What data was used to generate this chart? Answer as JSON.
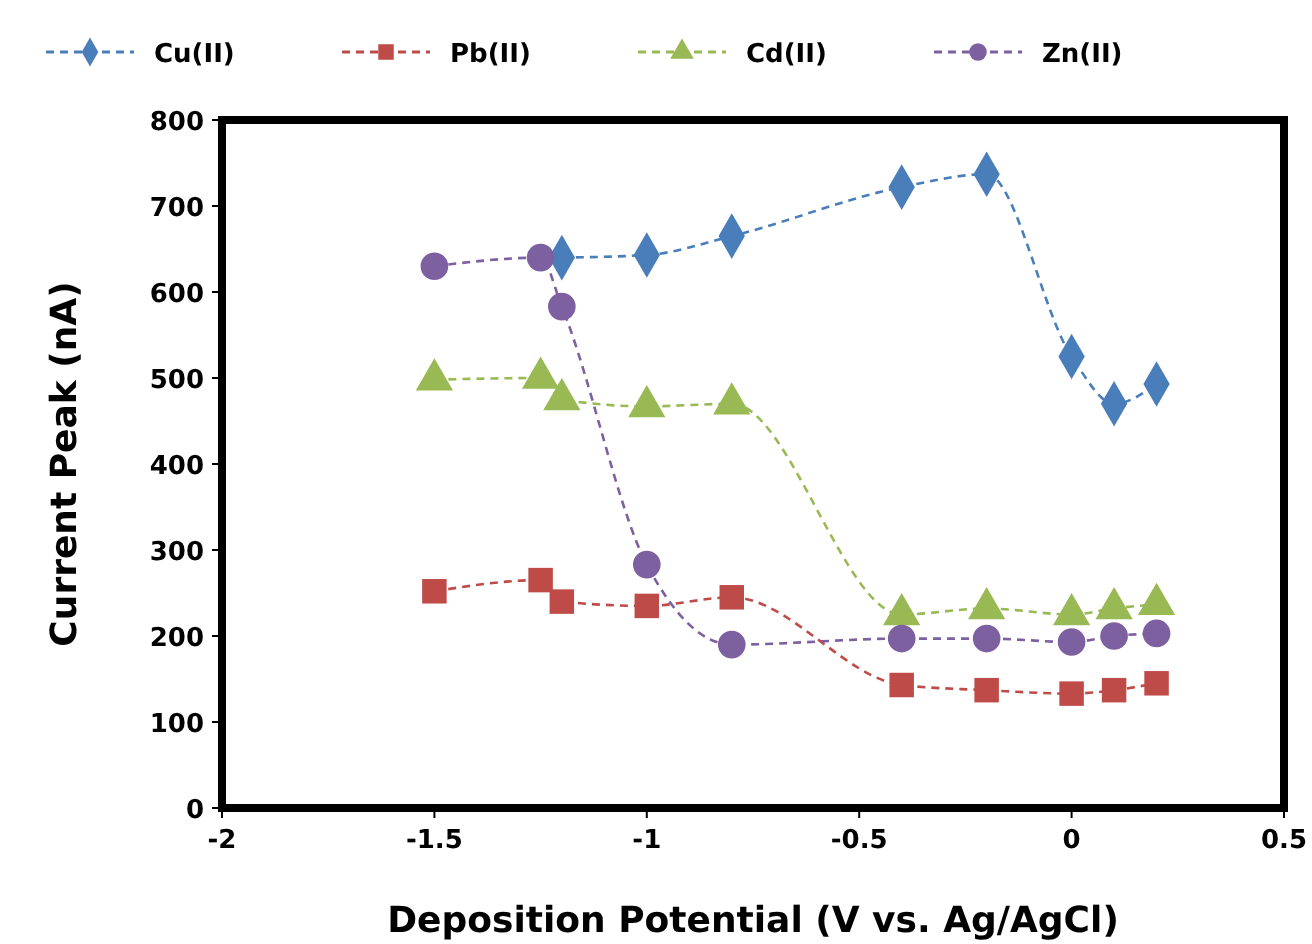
{
  "chart_data": {
    "type": "line",
    "xlabel": "Deposition Potential (V vs. Ag/AgCl)",
    "ylabel": "Current  Peak (nA)",
    "xlim": [
      -2,
      0.5
    ],
    "xticks": [
      -2,
      -1.5,
      -1,
      -0.5,
      0,
      0.5
    ],
    "ylim": [
      0,
      800
    ],
    "yticks": [
      0,
      100,
      200,
      300,
      400,
      500,
      600,
      700,
      800
    ],
    "legend": "top",
    "line_style": "dashed",
    "grid": false,
    "series": [
      {
        "name": "Cu(II)",
        "color": "#4a7ebb",
        "marker": "diamond",
        "x": [
          -1.2,
          -1,
          -0.8,
          -0.4,
          -0.2,
          0,
          0.1,
          0.2
        ],
        "values": [
          640,
          643,
          665,
          722,
          737,
          525,
          470,
          493
        ]
      },
      {
        "name": "Pb(II)",
        "color": "#be4b48",
        "marker": "square",
        "x": [
          -1.5,
          -1.25,
          -1.2,
          -1,
          -0.8,
          -0.4,
          -0.2,
          0,
          0.1,
          0.2
        ],
        "values": [
          252,
          265,
          240,
          235,
          245,
          143,
          137,
          133,
          137,
          145
        ]
      },
      {
        "name": "Cd(II)",
        "color": "#98b954",
        "marker": "triangle",
        "x": [
          -1.5,
          -1.25,
          -1.2,
          -1,
          -0.8,
          -0.4,
          -0.2,
          0,
          0.1,
          0.2
        ],
        "values": [
          498,
          500,
          475,
          467,
          470,
          225,
          232,
          225,
          232,
          237
        ]
      },
      {
        "name": "Zn(II)",
        "color": "#7d60a0",
        "marker": "circle",
        "x": [
          -1.5,
          -1.25,
          -1.2,
          -1,
          -0.8,
          -0.4,
          -0.2,
          0,
          0.1,
          0.2
        ],
        "values": [
          630,
          640,
          583,
          283,
          190,
          197,
          197,
          193,
          200,
          203
        ]
      }
    ]
  }
}
